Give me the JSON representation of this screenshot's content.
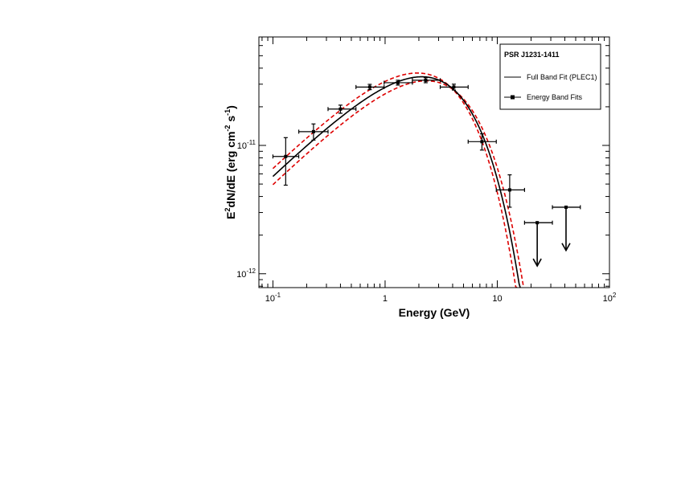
{
  "chart_data": {
    "type": "scatter",
    "title": "",
    "xlabel": "Energy (GeV)",
    "ylabel": "E²dN/dE (erg cm⁻² s⁻¹)",
    "xlabel_parts": [
      "Energy (GeV)"
    ],
    "ylabel_parts": {
      "a": "E",
      "a_sup": "2",
      "b": "dN/dE (erg cm",
      "b_sup": "-2",
      "c": " s",
      "c_sup": "-1",
      "d": ")"
    },
    "xscale": "log",
    "yscale": "log",
    "xlim": [
      0.075,
      100
    ],
    "ylim": [
      7.8e-13,
      7e-11
    ],
    "x_ticks": [
      {
        "value": 0.1,
        "base": "10",
        "exp": "-1"
      },
      {
        "value": 1,
        "base": "1",
        "exp": ""
      },
      {
        "value": 10,
        "base": "10",
        "exp": ""
      },
      {
        "value": 100,
        "base": "10",
        "exp": "2"
      }
    ],
    "y_ticks": [
      {
        "value": 1e-12,
        "base": "10",
        "exp": "-12"
      },
      {
        "value": 1e-11,
        "base": "10",
        "exp": "-11"
      }
    ],
    "grid": false,
    "legend": {
      "placement": "top-right",
      "title": "PSR J1231-1411",
      "entries": [
        {
          "label": "Full Band Fit (PLEC1)",
          "style": "line"
        },
        {
          "label": "Energy Band Fits",
          "style": "line-marker"
        }
      ]
    },
    "model": {
      "name": "Full Band Fit (PLEC1)",
      "type": "plec",
      "norm": 3.42e-11,
      "e_peak": 2.0,
      "gamma": 1.15,
      "e_cut": 2.5,
      "band_upper_factor": 1.07,
      "band_lower_factor": 0.93,
      "band_shift_low": -0.04,
      "band_shift_high": 0.04,
      "x_range": [
        0.1,
        17.6
      ],
      "line_color": "#000000",
      "band_color": "#dd0000"
    },
    "series": [
      {
        "name": "Energy Band Fits",
        "points": [
          {
            "x": 0.13,
            "xlo": 0.1,
            "xhi": 0.17,
            "y": 8.2e-12,
            "ylo": 4.9e-12,
            "yhi": 1.15e-11
          },
          {
            "x": 0.23,
            "xlo": 0.17,
            "xhi": 0.31,
            "y": 1.28e-11,
            "ylo": 1.1e-11,
            "yhi": 1.47e-11
          },
          {
            "x": 0.4,
            "xlo": 0.31,
            "xhi": 0.55,
            "y": 1.92e-11,
            "ylo": 1.78e-11,
            "yhi": 2.06e-11
          },
          {
            "x": 0.73,
            "xlo": 0.55,
            "xhi": 0.98,
            "y": 2.85e-11,
            "ylo": 2.72e-11,
            "yhi": 2.99e-11
          },
          {
            "x": 1.3,
            "xlo": 0.98,
            "xhi": 1.75,
            "y": 3.08e-11,
            "ylo": 2.95e-11,
            "yhi": 3.22e-11
          },
          {
            "x": 2.3,
            "xlo": 1.75,
            "xhi": 3.1,
            "y": 3.22e-11,
            "ylo": 3.08e-11,
            "yhi": 3.37e-11
          },
          {
            "x": 4.1,
            "xlo": 3.1,
            "xhi": 5.5,
            "y": 2.85e-11,
            "ylo": 2.7e-11,
            "yhi": 3e-11
          },
          {
            "x": 7.3,
            "xlo": 5.5,
            "xhi": 9.8,
            "y": 1.07e-11,
            "ylo": 9.2e-12,
            "yhi": 1.23e-11
          },
          {
            "x": 12.9,
            "xlo": 9.8,
            "xhi": 17.5,
            "y": 4.5e-12,
            "ylo": 3.3e-12,
            "yhi": 5.9e-12
          }
        ],
        "upper_limits": [
          {
            "x": 22.7,
            "xlo": 17.5,
            "xhi": 31,
            "y": 2.5e-12,
            "arrow_to": 1.15e-12
          },
          {
            "x": 41,
            "xlo": 31,
            "xhi": 55,
            "y": 3.3e-12,
            "arrow_to": 1.52e-12
          }
        ]
      }
    ]
  }
}
